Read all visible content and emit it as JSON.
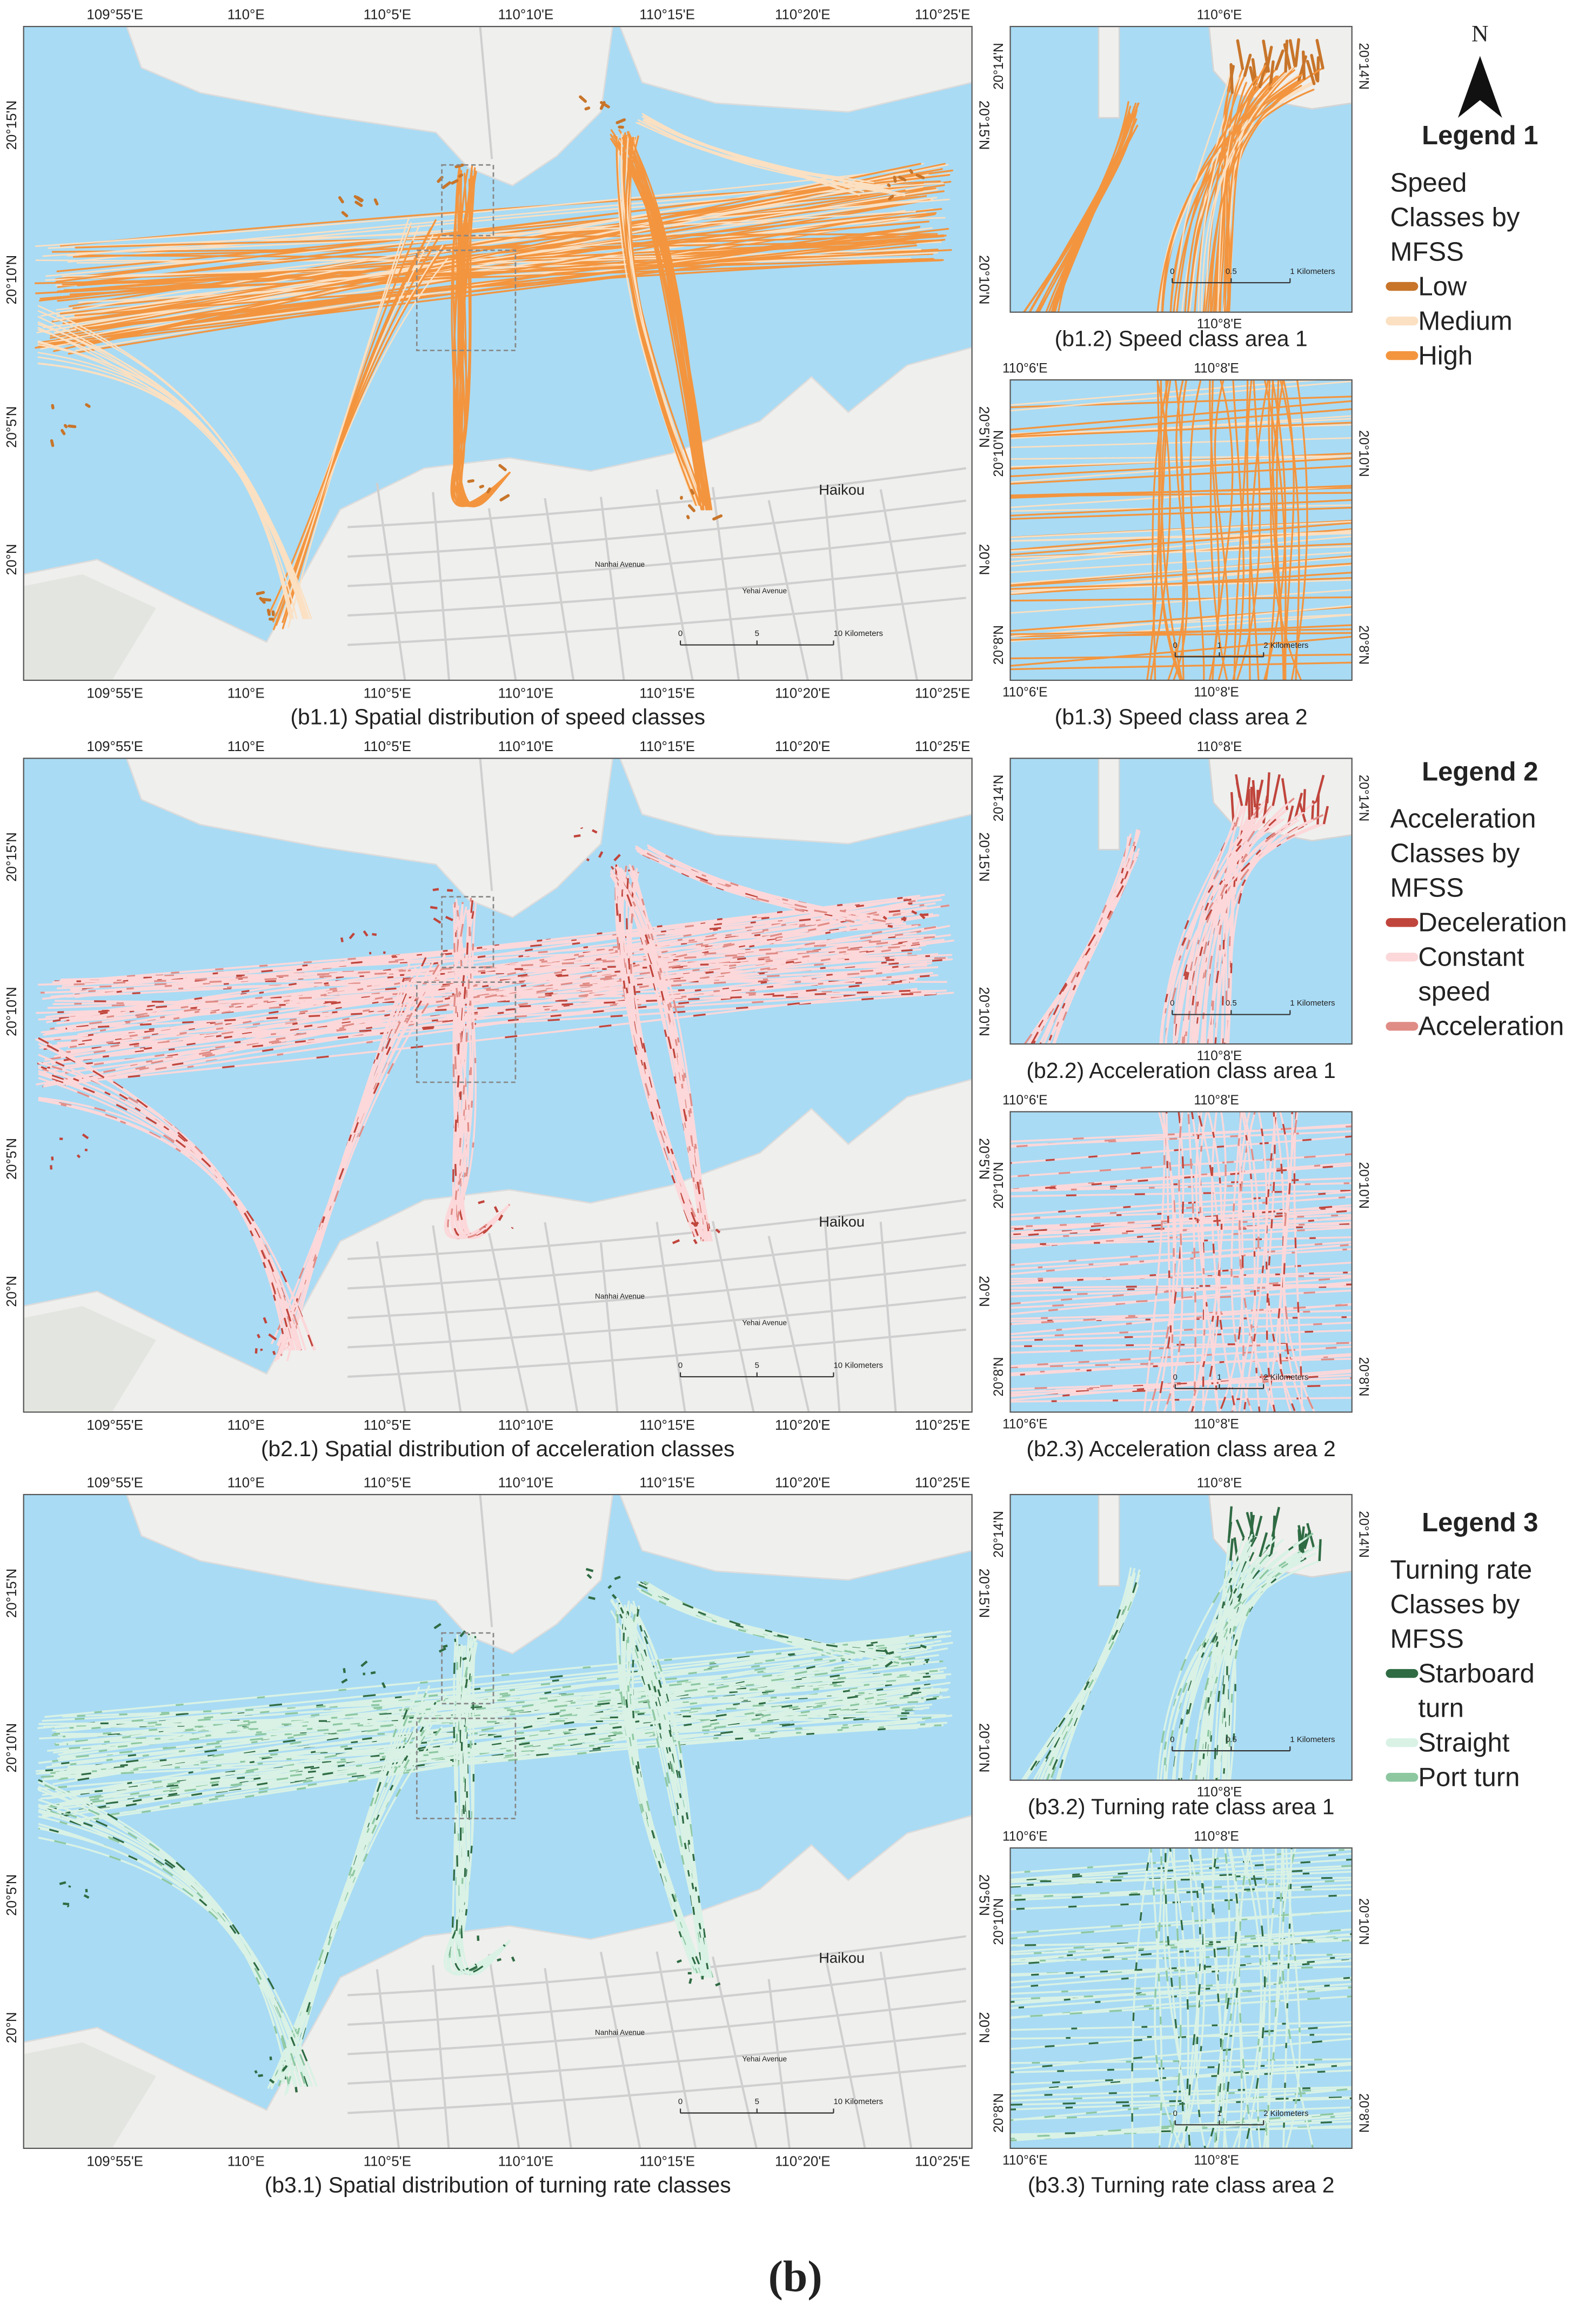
{
  "north_arrow": "N",
  "figure_label": "(b)",
  "main_map": {
    "lon_ticks": [
      "109°55'E",
      "110°E",
      "110°5'E",
      "110°10'E",
      "110°15'E",
      "110°20'E",
      "110°25'E"
    ],
    "lat_ticks": [
      "20°15'N",
      "20°10'N",
      "20°5'N",
      "20°N"
    ],
    "places": {
      "city": "Haikou",
      "road_1": "Nanhai Avenue",
      "road_2": "Yehai Avenue"
    },
    "scale_bar": [
      "0",
      "5",
      "10 Kilometers"
    ]
  },
  "area1": {
    "lon_bottom": "110°8'E",
    "lat": "20°14'N",
    "scale_bar": [
      "0",
      "0.5",
      "1 Kilometers"
    ]
  },
  "area2": {
    "lon_ticks": [
      "110°6'E",
      "110°8'E"
    ],
    "lat_ticks": [
      "20°10'N",
      "20°8'N"
    ],
    "scale_bar": [
      "0",
      "1",
      "2 Kilometers"
    ]
  },
  "rows": [
    {
      "mode": "speed",
      "area1_lon_top": "110°6'E",
      "captions": [
        "(b1.1) Spatial distribution of speed classes",
        "(b1.2) Speed class area 1",
        "(b1.3) Speed class area 2"
      ],
      "legend": {
        "title": "Legend 1",
        "subtitle": [
          "Speed",
          "Classes by",
          "MFSS"
        ],
        "items": [
          {
            "label": [
              "Low"
            ],
            "color": "#c8752a"
          },
          {
            "label": [
              "Medium"
            ],
            "color": "#fbe0c2"
          },
          {
            "label": [
              "High"
            ],
            "color": "#f3953f"
          }
        ]
      }
    },
    {
      "mode": "acceleration",
      "area1_lon_top": "110°8'E",
      "captions": [
        "(b2.1) Spatial distribution of acceleration classes",
        "(b2.2) Acceleration class area 1",
        "(b2.3) Acceleration class area 2"
      ],
      "legend": {
        "title": "Legend 2",
        "subtitle": [
          "Acceleration",
          "Classes by",
          "MFSS"
        ],
        "items": [
          {
            "label": [
              "Deceleration"
            ],
            "color": "#c0453c"
          },
          {
            "label": [
              "Constant",
              "speed"
            ],
            "color": "#fcd8da"
          },
          {
            "label": [
              "Acceleration"
            ],
            "color": "#e08c86"
          }
        ]
      }
    },
    {
      "mode": "turning",
      "area1_lon_top": "110°8'E",
      "captions": [
        "(b3.1) Spatial distribution of turning rate classes",
        "(b3.2) Turning rate class area 1",
        "(b3.3) Turning rate class area 2"
      ],
      "legend": {
        "title": "Legend 3",
        "subtitle": [
          "Turning rate",
          "Classes by",
          "MFSS"
        ],
        "items": [
          {
            "label": [
              "Starboard",
              "turn"
            ],
            "color": "#2f6b43"
          },
          {
            "label": [
              "Straight"
            ],
            "color": "#d9f2e5"
          },
          {
            "label": [
              "Port turn"
            ],
            "color": "#8cc7a0"
          }
        ]
      }
    }
  ]
}
